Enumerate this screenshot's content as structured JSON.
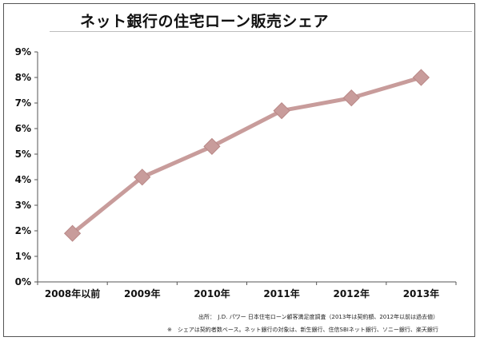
{
  "chart_data": {
    "type": "line",
    "title": "ネット銀行の住宅ローン販売シェア",
    "categories": [
      "2008年以前",
      "2009年",
      "2010年",
      "2011年",
      "2012年",
      "2013年"
    ],
    "series": [
      {
        "values": [
          1.9,
          4.1,
          5.3,
          6.7,
          7.2,
          8.0
        ]
      }
    ],
    "ylim": [
      0,
      9
    ],
    "yticks": [
      "0%",
      "1%",
      "2%",
      "3%",
      "4%",
      "5%",
      "6%",
      "7%",
      "8%",
      "9%"
    ],
    "xlabel": "",
    "ylabel": "",
    "grid": false,
    "legend": "none",
    "colors": {
      "line": "#c89c9b",
      "marker": "#c89c9b",
      "axis": "#555555"
    }
  },
  "footnotes": {
    "source": "出所：　J.D. パワー 日本住宅ローン顧客満足度調査（2013年は契約額、2012年以前は過去値）",
    "basis": "※　シェアは契約者数ベース。ネット銀行の対象は、新生銀行、住信SBIネット銀行、ソニー銀行、楽天銀行"
  }
}
